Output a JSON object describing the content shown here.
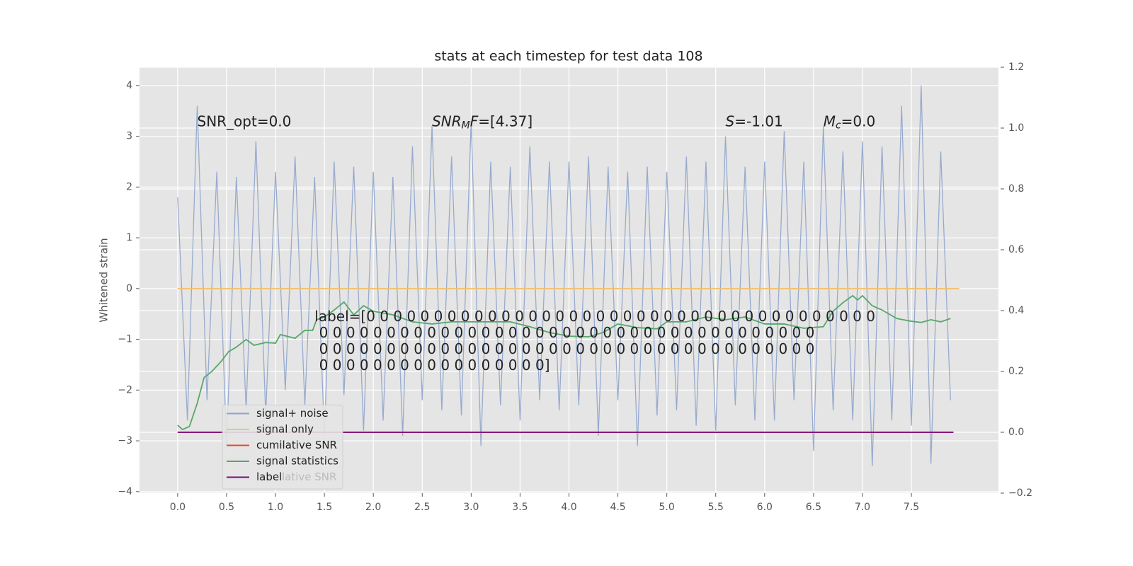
{
  "chart_data": {
    "type": "line",
    "title": "stats at each timestep for test data 108",
    "ylabel": "Whitened strain",
    "xlim": [
      -0.39,
      8.39
    ],
    "ylim": [
      -4.03,
      4.36
    ],
    "y2lim": [
      -0.2,
      1.2
    ],
    "xticks": [
      {
        "value": 0,
        "label": "0.0"
      },
      {
        "value": 0.5,
        "label": "0.5"
      },
      {
        "value": 1,
        "label": "1.0"
      },
      {
        "value": 1.5,
        "label": "1.5"
      },
      {
        "value": 2,
        "label": "2.0"
      },
      {
        "value": 2.5,
        "label": "2.5"
      },
      {
        "value": 3,
        "label": "3.0"
      },
      {
        "value": 3.5,
        "label": "3.5"
      },
      {
        "value": 4,
        "label": "4.0"
      },
      {
        "value": 4.5,
        "label": "4.5"
      },
      {
        "value": 5,
        "label": "5.0"
      },
      {
        "value": 5.5,
        "label": "5.5"
      },
      {
        "value": 6,
        "label": "6.0"
      },
      {
        "value": 6.5,
        "label": "6.5"
      },
      {
        "value": 7,
        "label": "7.0"
      },
      {
        "value": 7.5,
        "label": "7.5"
      }
    ],
    "yticks": [
      {
        "value": -4,
        "label": "−4"
      },
      {
        "value": -3,
        "label": "−3"
      },
      {
        "value": -2,
        "label": "−2"
      },
      {
        "value": -1,
        "label": "−1"
      },
      0,
      1,
      2,
      3,
      4
    ],
    "y2ticks": [
      {
        "value": -0.2,
        "label": "−0.2"
      },
      {
        "value": 0,
        "label": "0.0"
      },
      {
        "value": 0.2,
        "label": "0.2"
      },
      {
        "value": 0.4,
        "label": "0.4"
      },
      {
        "value": 0.6,
        "label": "0.6"
      },
      {
        "value": 0.8,
        "label": "0.8"
      },
      {
        "value": 1.0,
        "label": "1.0"
      },
      {
        "value": 1.2,
        "label": "1.2"
      }
    ],
    "grid": true,
    "legend": "lower left",
    "legend_ghost_text": "lative SNR",
    "series": [
      {
        "name": "signal+ noise",
        "color": "#8fa4cc",
        "x": [
          0,
          0.1,
          0.2,
          0.3,
          0.4,
          0.5,
          0.6,
          0.7,
          0.8,
          0.9,
          1.0,
          1.1,
          1.2,
          1.3,
          1.4,
          1.5,
          1.6,
          1.7,
          1.8,
          1.9,
          2.0,
          2.1,
          2.2,
          2.3,
          2.4,
          2.5,
          2.6,
          2.7,
          2.8,
          2.9,
          3.0,
          3.1,
          3.2,
          3.3,
          3.4,
          3.5,
          3.6,
          3.7,
          3.8,
          3.9,
          4.0,
          4.1,
          4.2,
          4.3,
          4.4,
          4.5,
          4.6,
          4.7,
          4.8,
          4.9,
          5.0,
          5.1,
          5.2,
          5.3,
          5.4,
          5.5,
          5.6,
          5.7,
          5.8,
          5.9,
          6.0,
          6.1,
          6.2,
          6.3,
          6.4,
          6.5,
          6.6,
          6.7,
          6.8,
          6.9,
          7.0,
          7.1,
          7.2,
          7.3,
          7.4,
          7.5,
          7.6,
          7.7,
          7.8,
          7.9
        ],
        "values": [
          1.8,
          -2.6,
          3.6,
          -2.2,
          2.3,
          -3.1,
          2.2,
          -2.4,
          2.9,
          -2.5,
          2.3,
          -2.0,
          2.6,
          -2.3,
          2.2,
          -2.9,
          2.5,
          -2.1,
          2.4,
          -2.8,
          2.3,
          -2.6,
          2.2,
          -2.9,
          2.8,
          -2.2,
          3.2,
          -2.4,
          2.6,
          -2.5,
          3.3,
          -3.1,
          2.5,
          -2.3,
          2.4,
          -2.6,
          2.8,
          -2.2,
          2.5,
          -2.4,
          2.5,
          -2.3,
          2.6,
          -2.9,
          2.4,
          -2.2,
          2.3,
          -3.1,
          2.4,
          -2.5,
          2.3,
          -2.4,
          2.6,
          -2.7,
          2.5,
          -2.8,
          3.0,
          -2.3,
          2.4,
          -2.6,
          2.5,
          -2.6,
          3.1,
          -2.2,
          2.5,
          -3.2,
          3.2,
          -2.4,
          2.7,
          -2.6,
          2.9,
          -3.5,
          2.8,
          -2.6,
          3.6,
          -2.7,
          4.0,
          -3.45,
          2.7,
          -2.2
        ]
      },
      {
        "name": "signal only",
        "color": "#f2c16e",
        "x": [
          0,
          7.99
        ],
        "values": [
          0,
          0
        ]
      },
      {
        "name": "cumilative SNR",
        "color": "#e24a33",
        "axis": "y2",
        "x": [
          0,
          7.93
        ],
        "values": [
          0,
          0
        ]
      },
      {
        "name": "signal statistics",
        "color": "#55a868",
        "axis": "y2",
        "x": [
          0,
          0.05,
          0.12,
          0.2,
          0.27,
          0.35,
          0.45,
          0.52,
          0.6,
          0.7,
          0.78,
          0.9,
          1.0,
          1.05,
          1.2,
          1.3,
          1.38,
          1.42,
          1.5,
          1.6,
          1.7,
          1.8,
          1.9,
          2.0,
          2.2,
          2.4,
          2.6,
          2.8,
          3.0,
          3.2,
          3.4,
          3.6,
          3.8,
          4.0,
          4.2,
          4.35,
          4.5,
          4.7,
          4.9,
          5.0,
          5.2,
          5.4,
          5.6,
          5.8,
          6.0,
          6.2,
          6.4,
          6.6,
          6.7,
          6.8,
          6.9,
          6.95,
          7.0,
          7.1,
          7.2,
          7.35,
          7.5,
          7.6,
          7.7,
          7.8,
          7.9
        ],
        "values": [
          0.023,
          0.009,
          0.019,
          0.095,
          0.18,
          0.2,
          0.235,
          0.265,
          0.28,
          0.305,
          0.286,
          0.295,
          0.293,
          0.321,
          0.309,
          0.335,
          0.335,
          0.37,
          0.379,
          0.402,
          0.428,
          0.386,
          0.416,
          0.398,
          0.386,
          0.363,
          0.356,
          0.363,
          0.363,
          0.363,
          0.363,
          0.347,
          0.328,
          0.316,
          0.314,
          0.328,
          0.356,
          0.344,
          0.34,
          0.363,
          0.363,
          0.379,
          0.37,
          0.379,
          0.356,
          0.356,
          0.342,
          0.347,
          0.398,
          0.426,
          0.449,
          0.435,
          0.449,
          0.416,
          0.402,
          0.374,
          0.365,
          0.361,
          0.37,
          0.363,
          0.374
        ]
      },
      {
        "name": "label",
        "color": "#7a0c7e",
        "axis": "y2",
        "x": [
          0,
          7.93
        ],
        "values": [
          0,
          0
        ]
      }
    ],
    "annotations": [
      {
        "x": 0.2,
        "y": 3.28,
        "parts": [
          {
            "text": "SNR_opt=0.0"
          }
        ]
      },
      {
        "x": 2.6,
        "y": 3.28,
        "parts": [
          {
            "text": "SNR",
            "italic": true
          },
          {
            "text": "M",
            "italic": true,
            "sub": true
          },
          {
            "text": "F",
            "italic": true
          },
          {
            "text": "=[4.37]"
          }
        ]
      },
      {
        "x": 5.6,
        "y": 3.28,
        "parts": [
          {
            "text": "S",
            "italic": true
          },
          {
            "text": "=-1.01"
          }
        ]
      },
      {
        "x": 6.6,
        "y": 3.28,
        "parts": [
          {
            "text": "M",
            "italic": true
          },
          {
            "text": "c",
            "italic": true,
            "sub": true
          },
          {
            "text": "=0.0"
          }
        ]
      },
      {
        "x": 1.4,
        "y": -0.57,
        "lines": [
          "label=[0 0 0 0 0 0 0 0 0 0 0 0 0 0 0 0 0 0 0 0 0 0 0 0 0 0 0 0 0 0 0 0 0 0 0 0 0 0",
          " 0 0 0 0 0 0 0 0 0 0 0 0 0 0 0 0 0 0 0 0 0 0 0 0 0 0 0 0 0 0 0 0 0 0 0 0 0",
          " 0 0 0 0 0 0 0 0 0 0 0 0 0 0 0 0 0 0 0 0 0 0 0 0 0 0 0 0 0 0 0 0 0 0 0 0 0",
          " 0 0 0 0 0 0 0 0 0 0 0 0 0 0 0 0 0]"
        ]
      }
    ]
  }
}
